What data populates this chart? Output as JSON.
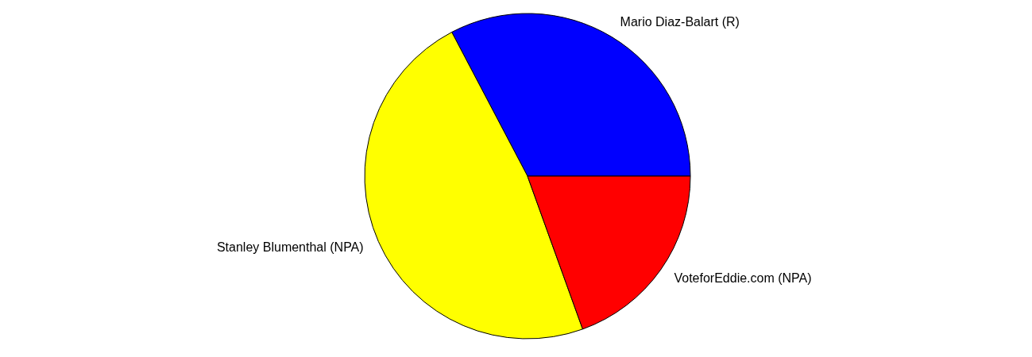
{
  "chart_data": {
    "type": "pie",
    "categories": [
      "Mario Diaz-Balart (R)",
      "Stanley Blumenthal (NPA)",
      "VoteforEddie.com (NPA)"
    ],
    "values": [
      32.7,
      47.8,
      19.5
    ],
    "colors": [
      "#0000ff",
      "#ffff00",
      "#ff0000"
    ]
  }
}
